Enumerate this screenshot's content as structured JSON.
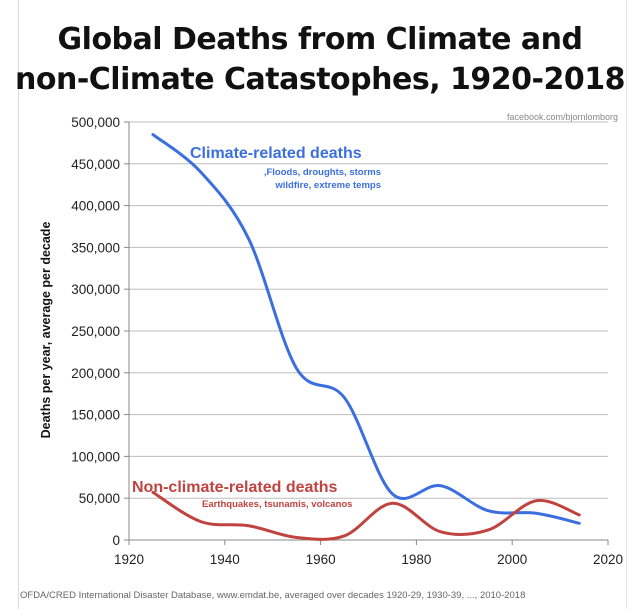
{
  "chart_data": {
    "type": "line",
    "title_line1": "Global Deaths from Climate and",
    "title_line2": "non-Climate Catastophes, 1920-2018",
    "source_top": "facebook.com/bjornlomborg",
    "footer": "OFDA/CRED International Disaster Database, www.emdat.be, averaged over decades 1920-29, 1930-39, ..., 2010-2018",
    "ylabel": "Deaths per year, average per decade",
    "xlabel": "",
    "xlim": [
      1920,
      2020
    ],
    "ylim": [
      0,
      500000
    ],
    "x_ticks": [
      "1920",
      "1940",
      "1960",
      "1980",
      "2000",
      "2020"
    ],
    "y_ticks": [
      "0",
      "50,000",
      "100,000",
      "150,000",
      "200,000",
      "250,000",
      "300,000",
      "350,000",
      "400,000",
      "450,000",
      "500,000"
    ],
    "grid": "horizontal",
    "x": [
      1925,
      1935,
      1945,
      1955,
      1965,
      1975,
      1985,
      1995,
      2005,
      2014
    ],
    "series": [
      {
        "name": "Climate-related deaths",
        "subtitle_line1": "Floods, droughts, storms,",
        "subtitle_line2": "wildfire, extreme temps",
        "color": "#3b6fe0",
        "values": [
          485000,
          440000,
          360000,
          205000,
          170000,
          55000,
          65000,
          35000,
          32000,
          20000
        ]
      },
      {
        "name": "Non-climate-related deaths",
        "subtitle_line1": "Earthquakes, tsunamis, volcanos",
        "color": "#c0433f",
        "values": [
          57000,
          22000,
          17000,
          3000,
          5000,
          44000,
          10000,
          12000,
          47000,
          30000
        ]
      }
    ]
  }
}
